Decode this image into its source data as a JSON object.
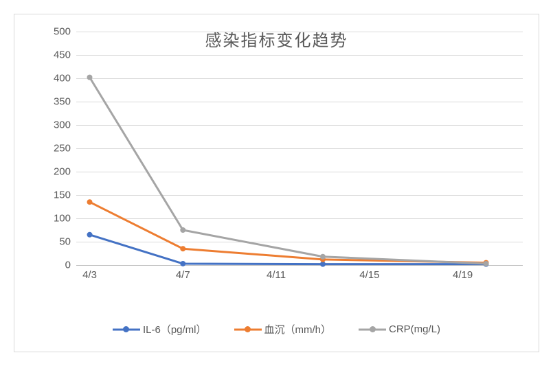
{
  "chart": {
    "type": "line",
    "title": "感染指标变化趋势",
    "title_fontsize": 24,
    "title_color": "#595959",
    "background_color": "#ffffff",
    "border_color": "#d9d9d9",
    "grid_color": "#d9d9d9",
    "axis_line_color": "#bfbfbf",
    "tick_label_color": "#595959",
    "tick_fontsize": 15,
    "y": {
      "min": 0,
      "max": 500,
      "step": 50,
      "ticks": [
        0,
        50,
        100,
        150,
        200,
        250,
        300,
        350,
        400,
        450,
        500
      ]
    },
    "x": {
      "date_min": "4/3",
      "date_max": "4/21",
      "tick_labels": [
        "4/3",
        "4/7",
        "4/11",
        "4/15",
        "4/19"
      ],
      "tick_day_offsets": [
        0,
        4,
        8,
        12,
        16
      ],
      "range_days": 18
    },
    "series": [
      {
        "name": "IL-6（pg/ml）",
        "color": "#4472c4",
        "line_width": 3,
        "marker_size": 8,
        "day_offsets": [
          0,
          4,
          10,
          17
        ],
        "values": [
          65,
          3,
          2,
          2
        ]
      },
      {
        "name": "血沉（mm/h）",
        "color": "#ed7d31",
        "line_width": 3,
        "marker_size": 8,
        "day_offsets": [
          0,
          4,
          10,
          17
        ],
        "values": [
          135,
          35,
          12,
          5
        ]
      },
      {
        "name": "CRP(mg/L)",
        "color": "#a5a5a5",
        "line_width": 3,
        "marker_size": 8,
        "day_offsets": [
          0,
          4,
          10,
          17
        ],
        "values": [
          402,
          75,
          18,
          3
        ]
      }
    ],
    "legend": {
      "position": "bottom",
      "fontsize": 15,
      "color": "#595959"
    }
  }
}
